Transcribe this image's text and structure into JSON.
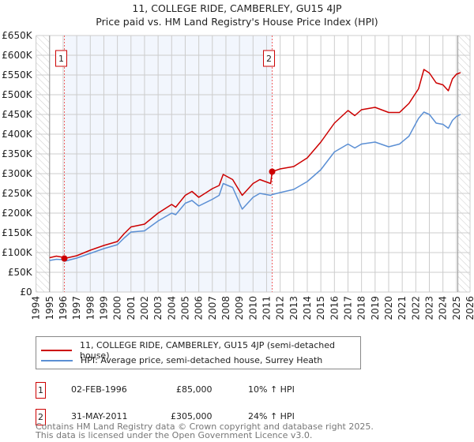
{
  "chart_data": {
    "type": "line",
    "title": "11, COLLEGE RIDE, CAMBERLEY, GU15 4JP",
    "subtitle": "Price paid vs. HM Land Registry's House Price Index (HPI)",
    "xlim": [
      1994,
      2026
    ],
    "ylim": [
      0,
      650000
    ],
    "x_ticks": [
      "1994",
      "1995",
      "1996",
      "1997",
      "1998",
      "1999",
      "2000",
      "2001",
      "2002",
      "2003",
      "2004",
      "2005",
      "2006",
      "2007",
      "2008",
      "2009",
      "2010",
      "2011",
      "2012",
      "2013",
      "2014",
      "2015",
      "2016",
      "2017",
      "2018",
      "2019",
      "2020",
      "2021",
      "2022",
      "2023",
      "2024",
      "2025",
      "2026"
    ],
    "y_ticks": [
      {
        "value": 0,
        "label": "£0"
      },
      {
        "value": 50000,
        "label": "£50K"
      },
      {
        "value": 100000,
        "label": "£100K"
      },
      {
        "value": 150000,
        "label": "£150K"
      },
      {
        "value": 200000,
        "label": "£200K"
      },
      {
        "value": 250000,
        "label": "£250K"
      },
      {
        "value": 300000,
        "label": "£300K"
      },
      {
        "value": 350000,
        "label": "£350K"
      },
      {
        "value": 400000,
        "label": "£400K"
      },
      {
        "value": 450000,
        "label": "£450K"
      },
      {
        "value": 500000,
        "label": "£500K"
      },
      {
        "value": 550000,
        "label": "£550K"
      },
      {
        "value": 600000,
        "label": "£600K"
      },
      {
        "value": 650000,
        "label": "£650K"
      }
    ],
    "grid": true,
    "shaded_period": [
      1996.09,
      2011.41
    ],
    "hatched_before": 1995,
    "hatched_after": 2025.1,
    "series": [
      {
        "name": "11, COLLEGE RIDE, CAMBERLEY, GU15 4JP (semi-detached house)",
        "color": "#cc0000",
        "x": [
          1995,
          1995.5,
          1996,
          1996.09,
          1997,
          1998,
          1999,
          2000,
          2000.5,
          2001,
          2002,
          2003,
          2004,
          2004.3,
          2005,
          2005.5,
          2006,
          2007,
          2007.5,
          2007.8,
          2008.5,
          2009.2,
          2010,
          2010.5,
          2011.3,
          2011.41,
          2012,
          2013,
          2014,
          2015,
          2016,
          2017,
          2017.5,
          2018,
          2019,
          2020,
          2020.8,
          2021.5,
          2022.2,
          2022.6,
          2023,
          2023.5,
          2024,
          2024.4,
          2024.7,
          2025,
          2025.3
        ],
        "y": [
          87000,
          91000,
          88000,
          85000,
          92000,
          106000,
          118000,
          128000,
          148000,
          165000,
          172000,
          200000,
          222000,
          215000,
          245000,
          255000,
          240000,
          262000,
          270000,
          298000,
          285000,
          245000,
          275000,
          285000,
          275000,
          305000,
          312000,
          318000,
          340000,
          380000,
          428000,
          460000,
          447000,
          462000,
          468000,
          455000,
          455000,
          478000,
          515000,
          564000,
          555000,
          530000,
          525000,
          510000,
          540000,
          552000,
          556000
        ]
      },
      {
        "name": "HPI: Average price, semi-detached house, Surrey Heath",
        "color": "#5b8fd4",
        "x": [
          1995,
          1995.5,
          1996,
          1996.09,
          1997,
          1998,
          1999,
          2000,
          2000.5,
          2001,
          2002,
          2003,
          2004,
          2004.3,
          2005,
          2005.5,
          2006,
          2007,
          2007.5,
          2007.8,
          2008.5,
          2009.2,
          2010,
          2010.5,
          2011.3,
          2011.41,
          2012,
          2013,
          2014,
          2015,
          2016,
          2017,
          2017.5,
          2018,
          2019,
          2020,
          2020.8,
          2021.5,
          2022.2,
          2022.6,
          2023,
          2023.5,
          2024,
          2024.4,
          2024.7,
          2025,
          2025.3
        ],
        "y": [
          80000,
          83000,
          82000,
          78000,
          86000,
          98000,
          110000,
          120000,
          137000,
          152000,
          155000,
          180000,
          200000,
          196000,
          225000,
          232000,
          218000,
          235000,
          245000,
          275000,
          265000,
          210000,
          240000,
          250000,
          245000,
          247000,
          252000,
          260000,
          280000,
          310000,
          355000,
          375000,
          365000,
          375000,
          380000,
          368000,
          375000,
          395000,
          440000,
          456000,
          450000,
          428000,
          425000,
          415000,
          435000,
          445000,
          450000
        ]
      }
    ],
    "annotations": [
      {
        "label": "1",
        "x": 1996.09,
        "y": 85000
      },
      {
        "label": "2",
        "x": 2011.41,
        "y": 305000
      }
    ]
  },
  "legend": {
    "items": [
      {
        "label": "11, COLLEGE RIDE, CAMBERLEY, GU15 4JP (semi-detached house)",
        "color": "#cc0000"
      },
      {
        "label": "HPI: Average price, semi-detached house, Surrey Heath",
        "color": "#5b8fd4"
      }
    ]
  },
  "transactions": [
    {
      "num": "1",
      "date": "02-FEB-1996",
      "price": "£85,000",
      "delta": "10% ↑ HPI"
    },
    {
      "num": "2",
      "date": "31-MAY-2011",
      "price": "£305,000",
      "delta": "24% ↑ HPI"
    }
  ],
  "footer": {
    "line1": "Contains HM Land Registry data © Crown copyright and database right 2025.",
    "line2": "This data is licensed under the Open Government Licence v3.0."
  }
}
